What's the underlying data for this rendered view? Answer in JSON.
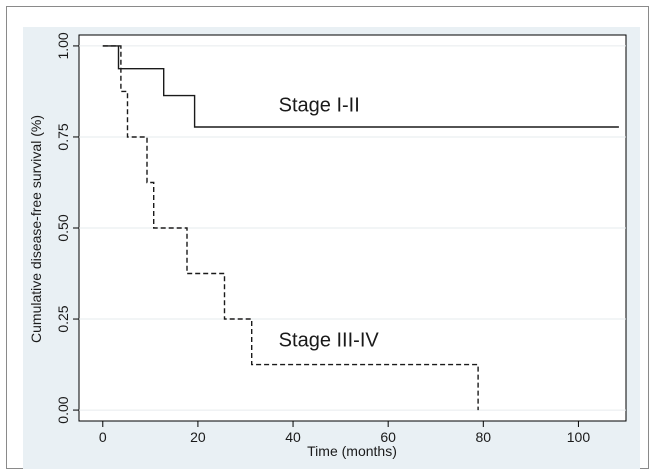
{
  "chart_data": {
    "type": "line",
    "title": "",
    "xlabel": "Time (months)",
    "ylabel": "Cumulative disease-free survival (%)",
    "xlim": [
      -5,
      110
    ],
    "ylim": [
      -0.03,
      1.03
    ],
    "x_ticks": [
      0,
      20,
      40,
      60,
      80,
      100
    ],
    "x_tick_labels": [
      "0",
      "20",
      "40",
      "60",
      "80",
      "100"
    ],
    "y_ticks": [
      0,
      0.25,
      0.5,
      0.75,
      1
    ],
    "y_tick_labels": [
      "0.00",
      "0.25",
      "0.50",
      "0.75",
      "1.00"
    ],
    "grid": "horizontal",
    "legend": "none",
    "series": [
      {
        "style": "solid",
        "color": "#1a1a1a",
        "x": [
          0,
          3.3,
          3.3,
          12.8,
          12.8,
          19.3,
          19.3,
          108.5
        ],
        "y": [
          1.0,
          1.0,
          0.9375,
          0.9375,
          0.8636,
          0.8636,
          0.7773,
          0.7773
        ]
      },
      {
        "style": "dashed",
        "color": "#1a1a1a",
        "x": [
          0,
          3.8,
          3.8,
          5.2,
          5.2,
          9.3,
          9.3,
          10.7,
          10.7,
          17.7,
          17.7,
          25.6,
          25.6,
          31.3,
          31.3,
          78.9,
          78.9
        ],
        "y": [
          1.0,
          1.0,
          0.875,
          0.875,
          0.75,
          0.75,
          0.625,
          0.625,
          0.5,
          0.5,
          0.375,
          0.375,
          0.25,
          0.25,
          0.125,
          0.125,
          0.0
        ]
      }
    ],
    "annotations": [
      {
        "text": "Stage I-II",
        "x": 45.5,
        "y": 0.82
      },
      {
        "text": "Stage III-IV",
        "x": 47.5,
        "y": 0.175
      }
    ]
  }
}
